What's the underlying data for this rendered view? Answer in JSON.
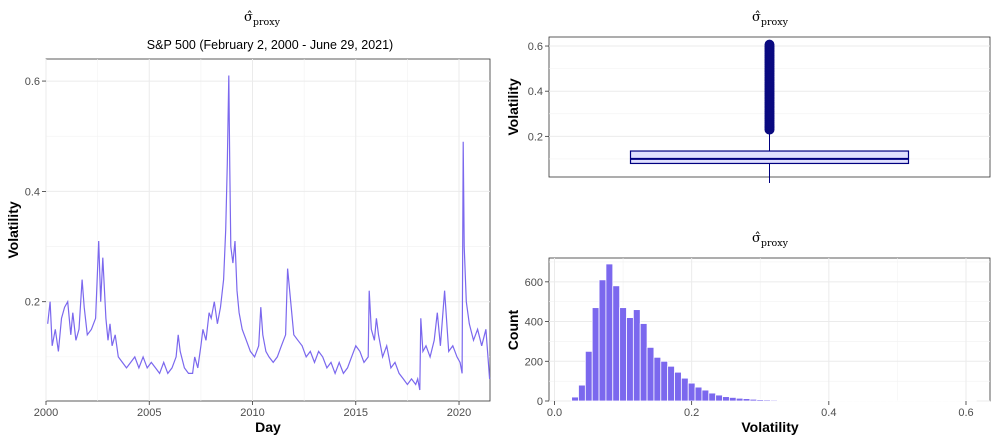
{
  "chart_data": [
    {
      "type": "line",
      "title_main": "σ̂",
      "title_sub": "proxy",
      "subtitle": "S&P 500 (February 2, 2000 - June 29, 2021)",
      "xlabel": "Day",
      "ylabel": "Volatility",
      "xlim": [
        2000,
        2021.5
      ],
      "ylim": [
        0.02,
        0.64
      ],
      "xticks": [
        2000,
        2005,
        2010,
        2015,
        2020
      ],
      "yticks": [
        0.2,
        0.4,
        0.6
      ],
      "color": "#7B68EE",
      "x": [
        2000.08,
        2000.2,
        2000.3,
        2000.45,
        2000.6,
        2000.75,
        2000.9,
        2001.05,
        2001.2,
        2001.3,
        2001.45,
        2001.6,
        2001.75,
        2001.85,
        2002.0,
        2002.2,
        2002.4,
        2002.55,
        2002.65,
        2002.75,
        2002.9,
        2003.0,
        2003.1,
        2003.2,
        2003.35,
        2003.5,
        2003.7,
        2003.9,
        2004.1,
        2004.3,
        2004.5,
        2004.7,
        2004.9,
        2005.1,
        2005.3,
        2005.5,
        2005.7,
        2005.9,
        2006.1,
        2006.3,
        2006.4,
        2006.5,
        2006.7,
        2006.9,
        2007.1,
        2007.2,
        2007.35,
        2007.5,
        2007.6,
        2007.75,
        2007.9,
        2008.0,
        2008.15,
        2008.3,
        2008.45,
        2008.6,
        2008.7,
        2008.78,
        2008.85,
        2008.9,
        2008.95,
        2009.05,
        2009.15,
        2009.25,
        2009.35,
        2009.5,
        2009.7,
        2009.9,
        2010.1,
        2010.3,
        2010.4,
        2010.5,
        2010.65,
        2010.8,
        2011.0,
        2011.2,
        2011.4,
        2011.6,
        2011.7,
        2011.85,
        2012.0,
        2012.2,
        2012.4,
        2012.6,
        2012.8,
        2013.0,
        2013.2,
        2013.4,
        2013.6,
        2013.8,
        2014.0,
        2014.2,
        2014.4,
        2014.6,
        2014.8,
        2015.0,
        2015.2,
        2015.4,
        2015.6,
        2015.65,
        2015.75,
        2015.9,
        2016.0,
        2016.1,
        2016.3,
        2016.5,
        2016.7,
        2016.9,
        2017.1,
        2017.3,
        2017.5,
        2017.7,
        2017.9,
        2018.0,
        2018.1,
        2018.15,
        2018.25,
        2018.4,
        2018.6,
        2018.8,
        2018.95,
        2019.1,
        2019.3,
        2019.5,
        2019.7,
        2019.9,
        2020.05,
        2020.15,
        2020.2,
        2020.25,
        2020.35,
        2020.5,
        2020.7,
        2020.9,
        2021.1,
        2021.3,
        2021.48
      ],
      "y": [
        0.16,
        0.2,
        0.12,
        0.15,
        0.11,
        0.17,
        0.19,
        0.2,
        0.14,
        0.18,
        0.13,
        0.15,
        0.24,
        0.19,
        0.14,
        0.15,
        0.17,
        0.31,
        0.2,
        0.28,
        0.17,
        0.13,
        0.16,
        0.12,
        0.14,
        0.1,
        0.09,
        0.08,
        0.09,
        0.1,
        0.08,
        0.1,
        0.08,
        0.09,
        0.08,
        0.07,
        0.09,
        0.07,
        0.08,
        0.1,
        0.14,
        0.11,
        0.08,
        0.07,
        0.07,
        0.1,
        0.08,
        0.12,
        0.15,
        0.13,
        0.18,
        0.17,
        0.2,
        0.16,
        0.19,
        0.24,
        0.33,
        0.45,
        0.61,
        0.44,
        0.3,
        0.27,
        0.31,
        0.22,
        0.18,
        0.15,
        0.13,
        0.11,
        0.1,
        0.12,
        0.19,
        0.14,
        0.11,
        0.1,
        0.09,
        0.1,
        0.12,
        0.14,
        0.26,
        0.2,
        0.14,
        0.13,
        0.12,
        0.1,
        0.11,
        0.09,
        0.11,
        0.1,
        0.08,
        0.09,
        0.07,
        0.09,
        0.07,
        0.08,
        0.1,
        0.12,
        0.11,
        0.09,
        0.1,
        0.22,
        0.15,
        0.13,
        0.17,
        0.14,
        0.1,
        0.12,
        0.08,
        0.09,
        0.07,
        0.06,
        0.05,
        0.06,
        0.05,
        0.06,
        0.04,
        0.17,
        0.11,
        0.12,
        0.1,
        0.13,
        0.18,
        0.12,
        0.22,
        0.11,
        0.12,
        0.1,
        0.09,
        0.07,
        0.49,
        0.3,
        0.2,
        0.16,
        0.13,
        0.15,
        0.12,
        0.15,
        0.06
      ]
    },
    {
      "type": "box",
      "title_main": "σ̂",
      "title_sub": "proxy",
      "ylabel": "Volatility",
      "ylim": [
        0.02,
        0.64
      ],
      "yticks": [
        0.2,
        0.4,
        0.6
      ],
      "q1": 0.08,
      "median": 0.1,
      "q3": 0.135,
      "whisker_low": 0.03,
      "whisker_high": 0.22,
      "outlier_range": [
        0.23,
        0.61
      ],
      "fill": "#e0e0ff",
      "stroke": "#000080"
    },
    {
      "type": "bar",
      "title_main": "σ̂",
      "title_sub": "proxy",
      "xlabel": "Volatility",
      "ylabel": "Count",
      "xlim": [
        -0.008,
        0.635
      ],
      "ylim": [
        0,
        720
      ],
      "xticks": [
        0.0,
        0.2,
        0.4,
        0.6
      ],
      "yticks": [
        0,
        200,
        400,
        600
      ],
      "binwidth": 0.01,
      "color": "#7B68EE",
      "bins": [
        0.03,
        0.04,
        0.05,
        0.06,
        0.07,
        0.08,
        0.09,
        0.1,
        0.11,
        0.12,
        0.13,
        0.14,
        0.15,
        0.16,
        0.17,
        0.18,
        0.19,
        0.2,
        0.21,
        0.22,
        0.23,
        0.24,
        0.25,
        0.26,
        0.27,
        0.28,
        0.29,
        0.3,
        0.31,
        0.32,
        0.33,
        0.34,
        0.35,
        0.36,
        0.37,
        0.38,
        0.39,
        0.4,
        0.41,
        0.42,
        0.43,
        0.44,
        0.45,
        0.46,
        0.47,
        0.48,
        0.49,
        0.5,
        0.51,
        0.52,
        0.53,
        0.54,
        0.55,
        0.56,
        0.57,
        0.58,
        0.59,
        0.6,
        0.61
      ],
      "counts": [
        20,
        80,
        250,
        470,
        610,
        690,
        580,
        470,
        420,
        460,
        390,
        270,
        220,
        200,
        175,
        145,
        115,
        90,
        70,
        55,
        40,
        30,
        22,
        18,
        14,
        12,
        9,
        7,
        6,
        5,
        4,
        4,
        3,
        3,
        3,
        2,
        2,
        2,
        2,
        2,
        2,
        2,
        3,
        2,
        2,
        2,
        1,
        1,
        1,
        1,
        1,
        1,
        1,
        1,
        1,
        1,
        1,
        1,
        1
      ]
    }
  ]
}
